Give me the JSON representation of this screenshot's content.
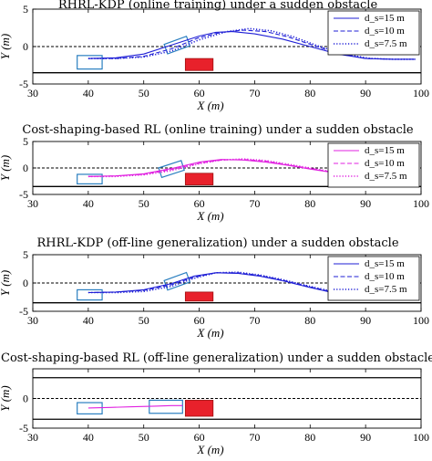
{
  "chart_data": [
    {
      "type": "line",
      "title": "RHRL-KDP (online training) under a sudden obstacle",
      "xlabel": "X (m)",
      "ylabel": "Y (m)",
      "xlim": [
        30,
        100
      ],
      "ylim": [
        -5,
        5
      ],
      "xticks": [
        "30",
        "40",
        "50",
        "60",
        "70",
        "80",
        "90",
        "100"
      ],
      "yticks": [
        "5",
        "0",
        "-5"
      ],
      "legend_position": "top-right",
      "color": "#1f1fd6",
      "series": [
        {
          "name": "d_s=15 m",
          "style": "solid",
          "x": [
            40,
            45,
            50,
            55,
            60,
            63,
            66,
            70,
            75,
            80,
            85,
            90,
            95,
            99
          ],
          "y": [
            -1.6,
            -1.5,
            -1.0,
            0.2,
            1.4,
            1.9,
            2.0,
            1.7,
            1.0,
            0.0,
            -1.0,
            -1.6,
            -1.7,
            -1.7
          ]
        },
        {
          "name": "d_s=10 m",
          "style": "dashed",
          "x": [
            40,
            45,
            50,
            55,
            60,
            64,
            68,
            72,
            76,
            80,
            85,
            90,
            95,
            99
          ],
          "y": [
            -1.6,
            -1.6,
            -1.3,
            -0.3,
            1.2,
            1.9,
            2.2,
            2.0,
            1.3,
            0.3,
            -0.9,
            -1.6,
            -1.7,
            -1.7
          ]
        },
        {
          "name": "d_s=7.5 m",
          "style": "dotted",
          "x": [
            40,
            45,
            50,
            55,
            60,
            65,
            69,
            73,
            77,
            81,
            86,
            91,
            95,
            99
          ],
          "y": [
            -1.6,
            -1.6,
            -1.4,
            -0.6,
            0.9,
            2.0,
            2.4,
            2.1,
            1.3,
            0.2,
            -1.0,
            -1.6,
            -1.7,
            -1.7
          ]
        }
      ],
      "lanes": {
        "center": 0,
        "bottom": -3.5
      },
      "obstacle": {
        "x": [
          57.5,
          62.5
        ],
        "y": [
          -3.2,
          -1.6
        ],
        "color": "#e8212b"
      },
      "vehicle_start": {
        "x": [
          38,
          42.5
        ],
        "y": [
          -3.0,
          -1.2
        ],
        "color": "#2a7fc0"
      },
      "vehicle_current": {
        "cx": 56,
        "cy": 0.2,
        "angle_deg": 20,
        "color": "#2a7fc0"
      }
    },
    {
      "type": "line",
      "title": "Cost-shaping-based RL (online training) under a sudden obstacle",
      "xlabel": "X (m)",
      "ylabel": "Y (m)",
      "xlim": [
        30,
        100
      ],
      "ylim": [
        -5,
        5
      ],
      "xticks": [
        "30",
        "40",
        "50",
        "60",
        "70",
        "80",
        "90",
        "100"
      ],
      "yticks": [
        "5",
        "0",
        "-5"
      ],
      "legend_position": "top-right",
      "color": "#e020e0",
      "series": [
        {
          "name": "d_s=15 m",
          "style": "solid",
          "x": [
            40,
            45,
            50,
            55,
            60,
            64,
            68,
            72,
            76,
            80,
            85,
            90,
            95,
            99
          ],
          "y": [
            -1.6,
            -1.5,
            -1.1,
            -0.1,
            1.1,
            1.6,
            1.5,
            1.1,
            0.5,
            -0.2,
            -1.0,
            -1.5,
            -1.6,
            -1.6
          ]
        },
        {
          "name": "d_s=10 m",
          "style": "dashed",
          "x": [
            40,
            45,
            50,
            55,
            60,
            64,
            68,
            72,
            76,
            80,
            85,
            90,
            95,
            99
          ],
          "y": [
            -1.6,
            -1.5,
            -1.2,
            -0.3,
            0.9,
            1.5,
            1.6,
            1.3,
            0.6,
            -0.1,
            -0.9,
            -1.5,
            -1.6,
            -1.6
          ]
        },
        {
          "name": "d_s=7.5 m",
          "style": "dotted",
          "x": [
            40,
            45,
            50,
            55,
            60,
            64,
            68,
            72,
            76,
            80,
            85,
            90,
            95,
            99
          ],
          "y": [
            -1.6,
            -1.6,
            -1.3,
            -0.5,
            0.8,
            1.5,
            1.7,
            1.4,
            0.7,
            0.0,
            -0.9,
            -1.5,
            -1.6,
            -1.6
          ]
        }
      ],
      "lanes": {
        "center": 0,
        "bottom": -3.5
      },
      "obstacle": {
        "x": [
          57.5,
          62.5
        ],
        "y": [
          -3.2,
          -1.0
        ],
        "color": "#e8212b"
      },
      "vehicle_start": {
        "x": [
          38,
          42.5
        ],
        "y": [
          -3.0,
          -1.2
        ],
        "color": "#2a7fc0"
      },
      "vehicle_current": {
        "cx": 55,
        "cy": -0.2,
        "angle_deg": 18,
        "color": "#2a7fc0"
      }
    },
    {
      "type": "line",
      "title": "RHRL-KDP (off-line generalization) under a sudden obstacle",
      "xlabel": "X (m)",
      "ylabel": "Y (m)",
      "xlim": [
        30,
        100
      ],
      "ylim": [
        -5,
        5
      ],
      "xticks": [
        "30",
        "40",
        "50",
        "60",
        "70",
        "80",
        "90",
        "100"
      ],
      "yticks": [
        "5",
        "0",
        "-5"
      ],
      "legend_position": "top-right",
      "color": "#1f1fd6",
      "series": [
        {
          "name": "d_s=15 m",
          "style": "solid",
          "x": [
            40,
            45,
            50,
            55,
            59,
            63,
            67,
            71,
            75,
            80,
            85,
            90,
            95,
            99
          ],
          "y": [
            -1.7,
            -1.6,
            -1.2,
            -0.1,
            1.2,
            1.8,
            1.7,
            1.2,
            0.4,
            -0.8,
            -1.9,
            -2.3,
            -1.9,
            -1.8
          ]
        },
        {
          "name": "d_s=10 m",
          "style": "dashed",
          "x": [
            40,
            45,
            50,
            55,
            59,
            63,
            67,
            71,
            75,
            80,
            85,
            90,
            95,
            99
          ],
          "y": [
            -1.7,
            -1.6,
            -1.3,
            -0.3,
            1.0,
            1.8,
            1.8,
            1.3,
            0.5,
            -0.7,
            -1.8,
            -2.2,
            -1.9,
            -1.8
          ]
        },
        {
          "name": "d_s=7.5 m",
          "style": "dotted",
          "x": [
            40,
            45,
            50,
            55,
            59,
            63,
            67,
            71,
            75,
            80,
            85,
            90,
            95,
            99
          ],
          "y": [
            -1.7,
            -1.7,
            -1.5,
            -0.6,
            0.8,
            1.8,
            1.9,
            1.4,
            0.6,
            -0.6,
            -1.7,
            -2.1,
            -1.9,
            -1.8
          ]
        }
      ],
      "lanes": {
        "center": 0,
        "bottom": -3.5
      },
      "obstacle": {
        "x": [
          57.5,
          62.5
        ],
        "y": [
          -3.2,
          -1.6
        ],
        "color": "#e8212b"
      },
      "vehicle_start": {
        "x": [
          38,
          42.5
        ],
        "y": [
          -3.0,
          -1.2
        ],
        "color": "#2a7fc0"
      },
      "vehicle_current": {
        "cx": 56,
        "cy": 0.3,
        "angle_deg": 20,
        "color": "#2a7fc0"
      }
    },
    {
      "type": "line",
      "title": "Cost-shaping-based RL (off-line generalization) under a sudden obstacle",
      "xlabel": "X (m)",
      "ylabel": "Y (m)",
      "xlim": [
        30,
        100
      ],
      "ylim": [
        -5,
        5
      ],
      "xticks": [
        "30",
        "40",
        "50",
        "60",
        "70",
        "80",
        "90",
        "100"
      ],
      "yticks": [
        "0",
        "-5"
      ],
      "legend_position": "none",
      "color": "#e020e0",
      "series": [
        {
          "name": "",
          "style": "solid",
          "x": [
            40,
            44,
            48,
            52,
            55,
            57
          ],
          "y": [
            -1.6,
            -1.5,
            -1.4,
            -1.3,
            -1.2,
            -1.2
          ]
        }
      ],
      "lanes": {
        "top": 3.5,
        "center": 0,
        "bottom": -3.5
      },
      "obstacle": {
        "x": [
          57.5,
          62.5
        ],
        "y": [
          -3.0,
          -0.3
        ],
        "color": "#e8212b"
      },
      "vehicle_start": {
        "x": [
          38,
          42.5
        ],
        "y": [
          -2.6,
          -0.7
        ],
        "color": "#2a7fc0"
      },
      "vehicle_current": {
        "x": [
          51,
          57
        ],
        "y": [
          -2.5,
          -0.3
        ],
        "color": "#2a7fc0"
      }
    }
  ]
}
